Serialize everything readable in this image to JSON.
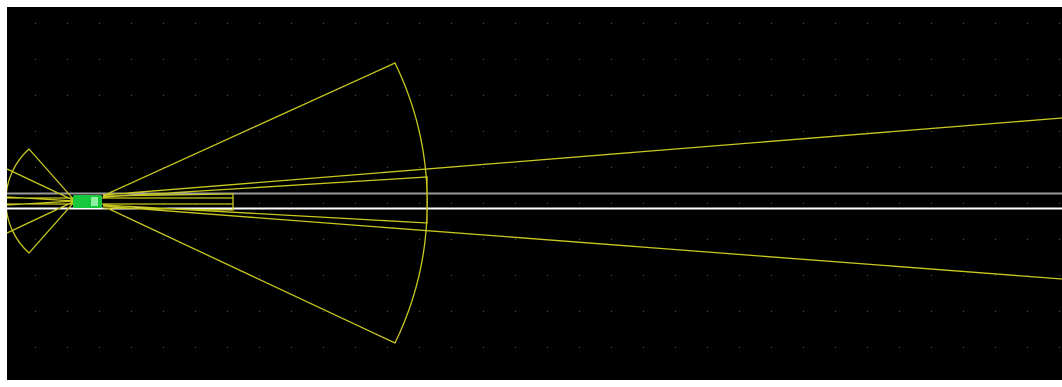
{
  "window": {
    "background": "#ffffff"
  },
  "viewport": {
    "background": "#000000",
    "grid_dot_color": "#5a5a5a",
    "grid": true
  },
  "colors": {
    "sensor_outline": "#c8c820",
    "lane_line": "#ffffff",
    "lane_line_gray": "#9a9a9a",
    "ego_vehicle": "#18c83c",
    "ego_vehicle_highlight": "#8cf0a0",
    "short_range_fill": "#b4b428"
  },
  "scene": {
    "ego_vehicle": {
      "name": "ego-vehicle",
      "icon": "car-icon"
    },
    "sensors": [
      {
        "name": "rear-wide-sensor"
      },
      {
        "name": "rear-narrow-sensor"
      },
      {
        "name": "front-wide-sensor"
      },
      {
        "name": "front-long-range-sensor"
      },
      {
        "name": "front-short-range-sensor"
      }
    ]
  }
}
